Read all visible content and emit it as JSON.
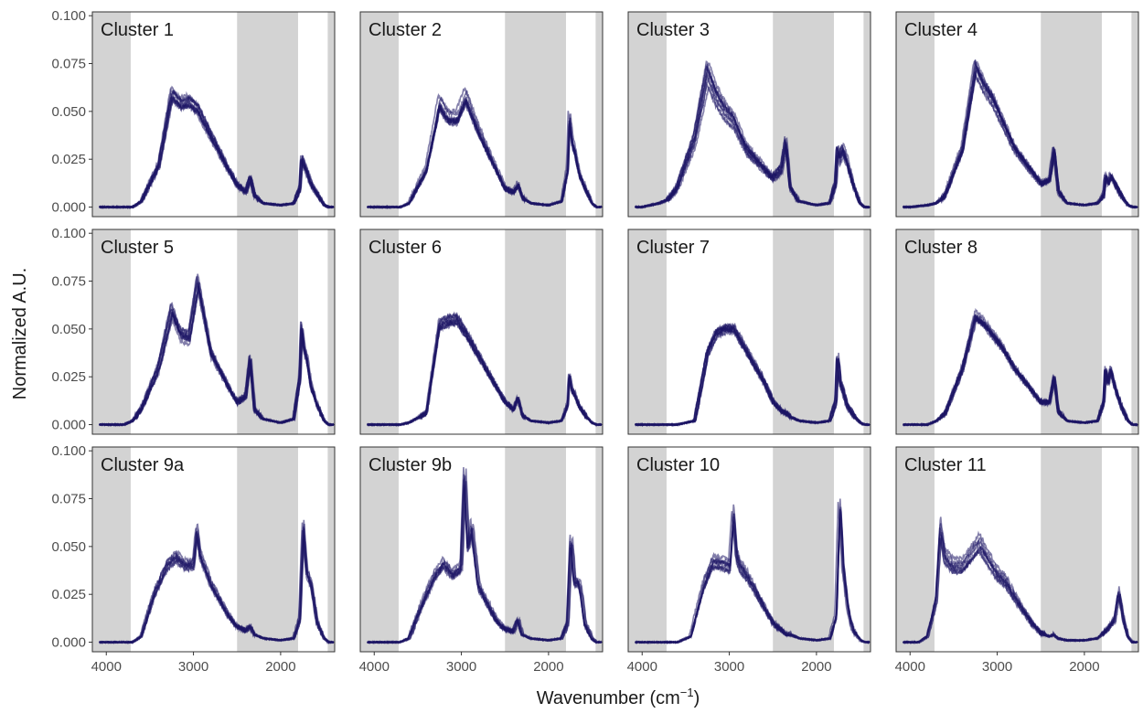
{
  "chart_data": {
    "type": "line",
    "layout": "facet-grid",
    "rows": 3,
    "cols": 4,
    "xlabel": "Wavenumber (cm",
    "xlabel_sup": "−1",
    "xlabel_close": ")",
    "ylabel": "Normalized A.U.",
    "xlim": [
      4160,
      1380
    ],
    "ylim": [
      -0.005,
      0.102
    ],
    "x_ticks": [
      4000,
      3000,
      2000
    ],
    "y_ticks": [
      0.0,
      0.025,
      0.05,
      0.075,
      0.1
    ],
    "y_tick_labels": [
      "0.000",
      "0.025",
      "0.050",
      "0.075",
      "0.100"
    ],
    "grid": false,
    "line_color": "#1b1464",
    "shade_color": "#d3d3d3",
    "shaded_regions": [
      [
        4160,
        3720
      ],
      [
        2500,
        1800
      ],
      [
        1460,
        1380
      ]
    ],
    "panels": [
      {
        "title": "Cluster 1",
        "n": 10,
        "spread": 0.06,
        "x": [
          4000,
          3800,
          3700,
          3600,
          3400,
          3250,
          3150,
          3050,
          2950,
          2800,
          2600,
          2500,
          2400,
          2350,
          2300,
          2200,
          2000,
          1850,
          1780,
          1760,
          1730,
          1700,
          1650,
          1580,
          1500,
          1450,
          1400
        ],
        "y": [
          0,
          0,
          0,
          0.003,
          0.022,
          0.06,
          0.055,
          0.056,
          0.052,
          0.038,
          0.02,
          0.012,
          0.008,
          0.016,
          0.006,
          0.002,
          0.001,
          0.002,
          0.01,
          0.026,
          0.022,
          0.019,
          0.012,
          0.007,
          0.001,
          0,
          0
        ]
      },
      {
        "title": "Cluster 2",
        "n": 10,
        "spread": 0.08,
        "x": [
          4000,
          3800,
          3700,
          3600,
          3400,
          3250,
          3150,
          3050,
          2950,
          2800,
          2600,
          2500,
          2400,
          2350,
          2300,
          2200,
          2000,
          1850,
          1780,
          1760,
          1730,
          1700,
          1650,
          1580,
          1500,
          1450,
          1400
        ],
        "y": [
          0,
          0,
          0,
          0.002,
          0.02,
          0.055,
          0.047,
          0.047,
          0.058,
          0.04,
          0.02,
          0.01,
          0.008,
          0.012,
          0.005,
          0.002,
          0.001,
          0.003,
          0.02,
          0.048,
          0.035,
          0.03,
          0.018,
          0.01,
          0.002,
          0,
          0
        ]
      },
      {
        "title": "Cluster 3",
        "n": 10,
        "spread": 0.1,
        "x": [
          4000,
          3800,
          3700,
          3600,
          3400,
          3250,
          3150,
          3050,
          2950,
          2800,
          2600,
          2500,
          2400,
          2350,
          2300,
          2200,
          2000,
          1850,
          1780,
          1760,
          1730,
          1700,
          1650,
          1580,
          1500,
          1450,
          1400
        ],
        "y": [
          0,
          0.002,
          0.004,
          0.01,
          0.035,
          0.07,
          0.058,
          0.05,
          0.045,
          0.03,
          0.02,
          0.015,
          0.02,
          0.034,
          0.01,
          0.003,
          0.001,
          0.002,
          0.012,
          0.03,
          0.025,
          0.03,
          0.024,
          0.012,
          0.002,
          0,
          0
        ]
      },
      {
        "title": "Cluster 4",
        "n": 10,
        "spread": 0.07,
        "x": [
          4000,
          3800,
          3700,
          3600,
          3400,
          3250,
          3150,
          3050,
          2950,
          2800,
          2600,
          2500,
          2400,
          2350,
          2300,
          2200,
          2000,
          1850,
          1780,
          1760,
          1730,
          1700,
          1650,
          1580,
          1500,
          1450,
          1400
        ],
        "y": [
          0,
          0.001,
          0.002,
          0.006,
          0.03,
          0.072,
          0.062,
          0.055,
          0.045,
          0.03,
          0.018,
          0.012,
          0.014,
          0.03,
          0.008,
          0.002,
          0.001,
          0.002,
          0.006,
          0.016,
          0.012,
          0.016,
          0.012,
          0.006,
          0.001,
          0,
          0
        ]
      },
      {
        "title": "Cluster 5",
        "n": 10,
        "spread": 0.09,
        "x": [
          4000,
          3800,
          3700,
          3600,
          3400,
          3250,
          3150,
          3050,
          2950,
          2800,
          2600,
          2500,
          2400,
          2350,
          2300,
          2200,
          2000,
          1850,
          1780,
          1760,
          1730,
          1700,
          1650,
          1580,
          1500,
          1450,
          1400
        ],
        "y": [
          0,
          0,
          0.002,
          0.008,
          0.03,
          0.06,
          0.048,
          0.046,
          0.075,
          0.038,
          0.02,
          0.012,
          0.015,
          0.035,
          0.008,
          0.003,
          0.001,
          0.003,
          0.025,
          0.052,
          0.04,
          0.035,
          0.02,
          0.01,
          0.002,
          0,
          0
        ]
      },
      {
        "title": "Cluster 6",
        "n": 10,
        "spread": 0.05,
        "x": [
          4000,
          3800,
          3700,
          3600,
          3400,
          3250,
          3150,
          3050,
          2950,
          2800,
          2600,
          2500,
          2400,
          2350,
          2300,
          2200,
          2000,
          1850,
          1780,
          1760,
          1730,
          1700,
          1650,
          1580,
          1500,
          1450,
          1400
        ],
        "y": [
          0,
          0,
          0,
          0.001,
          0.006,
          0.052,
          0.054,
          0.055,
          0.048,
          0.036,
          0.02,
          0.012,
          0.008,
          0.014,
          0.005,
          0.002,
          0.001,
          0.002,
          0.01,
          0.026,
          0.018,
          0.016,
          0.01,
          0.005,
          0.001,
          0,
          0
        ]
      },
      {
        "title": "Cluster 7",
        "n": 10,
        "spread": 0.05,
        "x": [
          4000,
          3800,
          3700,
          3600,
          3400,
          3250,
          3150,
          3050,
          2950,
          2800,
          2600,
          2500,
          2400,
          2350,
          2300,
          2200,
          2000,
          1850,
          1780,
          1760,
          1730,
          1700,
          1650,
          1580,
          1500,
          1450,
          1400
        ],
        "y": [
          0,
          0,
          0,
          0,
          0.002,
          0.038,
          0.048,
          0.05,
          0.05,
          0.038,
          0.022,
          0.012,
          0.007,
          0.006,
          0.004,
          0.002,
          0.001,
          0.002,
          0.012,
          0.036,
          0.022,
          0.018,
          0.01,
          0.005,
          0.001,
          0,
          0
        ]
      },
      {
        "title": "Cluster 8",
        "n": 10,
        "spread": 0.07,
        "x": [
          4000,
          3800,
          3700,
          3600,
          3400,
          3250,
          3150,
          3050,
          2950,
          2800,
          2600,
          2500,
          2400,
          2350,
          2300,
          2200,
          2000,
          1850,
          1780,
          1760,
          1730,
          1700,
          1650,
          1580,
          1500,
          1450,
          1400
        ],
        "y": [
          0,
          0,
          0.002,
          0.006,
          0.03,
          0.058,
          0.054,
          0.048,
          0.042,
          0.03,
          0.018,
          0.012,
          0.012,
          0.026,
          0.007,
          0.002,
          0.001,
          0.002,
          0.012,
          0.03,
          0.022,
          0.03,
          0.02,
          0.01,
          0.002,
          0,
          0
        ]
      },
      {
        "title": "Cluster 9a",
        "n": 8,
        "spread": 0.08,
        "x": [
          4000,
          3800,
          3700,
          3600,
          3450,
          3300,
          3200,
          3100,
          3000,
          2960,
          2920,
          2880,
          2800,
          2600,
          2500,
          2400,
          2350,
          2300,
          2200,
          2000,
          1850,
          1780,
          1740,
          1720,
          1700,
          1650,
          1620,
          1580,
          1500,
          1450,
          1400
        ],
        "y": [
          0,
          0,
          0,
          0.003,
          0.025,
          0.04,
          0.044,
          0.04,
          0.04,
          0.058,
          0.044,
          0.04,
          0.03,
          0.014,
          0.008,
          0.006,
          0.008,
          0.004,
          0.002,
          0.001,
          0.002,
          0.012,
          0.06,
          0.048,
          0.036,
          0.03,
          0.022,
          0.01,
          0.002,
          0,
          0
        ]
      },
      {
        "title": "Cluster 9b",
        "n": 8,
        "spread": 0.08,
        "x": [
          4000,
          3800,
          3700,
          3600,
          3450,
          3300,
          3200,
          3100,
          3000,
          2960,
          2920,
          2880,
          2800,
          2600,
          2500,
          2400,
          2350,
          2300,
          2200,
          2000,
          1850,
          1780,
          1740,
          1720,
          1700,
          1650,
          1620,
          1580,
          1500,
          1450,
          1400
        ],
        "y": [
          0,
          0,
          0,
          0.002,
          0.02,
          0.036,
          0.042,
          0.036,
          0.04,
          0.09,
          0.05,
          0.062,
          0.03,
          0.012,
          0.007,
          0.006,
          0.012,
          0.004,
          0.002,
          0.001,
          0.002,
          0.01,
          0.055,
          0.045,
          0.032,
          0.032,
          0.025,
          0.01,
          0.002,
          0,
          0
        ]
      },
      {
        "title": "Cluster 10",
        "n": 8,
        "spread": 0.08,
        "x": [
          4000,
          3800,
          3700,
          3600,
          3450,
          3300,
          3200,
          3100,
          3000,
          2960,
          2920,
          2880,
          2800,
          2600,
          2500,
          2400,
          2350,
          2300,
          2200,
          2000,
          1850,
          1780,
          1740,
          1720,
          1700,
          1650,
          1620,
          1580,
          1500,
          1450,
          1400
        ],
        "y": [
          0,
          0,
          0,
          0,
          0.003,
          0.03,
          0.042,
          0.042,
          0.04,
          0.068,
          0.045,
          0.04,
          0.035,
          0.018,
          0.01,
          0.006,
          0.004,
          0.004,
          0.002,
          0.001,
          0.002,
          0.014,
          0.072,
          0.06,
          0.04,
          0.02,
          0.012,
          0.006,
          0.001,
          0,
          0
        ]
      },
      {
        "title": "Cluster 11",
        "n": 8,
        "spread": 0.1,
        "x": [
          4000,
          3900,
          3800,
          3700,
          3650,
          3600,
          3500,
          3400,
          3300,
          3200,
          3100,
          3000,
          2900,
          2800,
          2600,
          2500,
          2400,
          2350,
          2300,
          2200,
          2000,
          1850,
          1750,
          1650,
          1620,
          1600,
          1550,
          1500,
          1450,
          1400
        ],
        "y": [
          0,
          0,
          0.003,
          0.022,
          0.06,
          0.045,
          0.04,
          0.04,
          0.046,
          0.052,
          0.044,
          0.036,
          0.032,
          0.024,
          0.01,
          0.005,
          0.003,
          0.004,
          0.002,
          0.001,
          0.001,
          0.002,
          0.006,
          0.012,
          0.022,
          0.026,
          0.012,
          0.003,
          0,
          0
        ]
      }
    ]
  }
}
